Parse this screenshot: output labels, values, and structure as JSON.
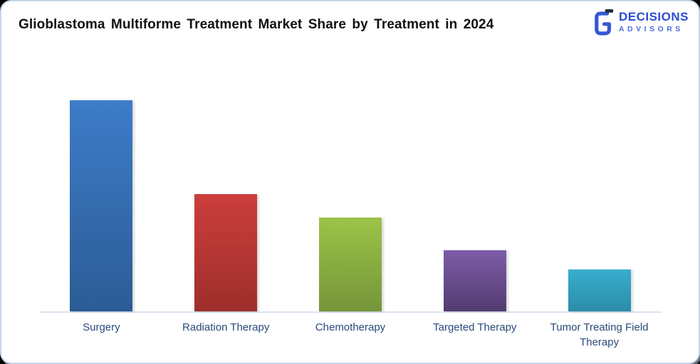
{
  "header": {
    "title": "Glioblastoma Multiforme Treatment Market Share by Treatment in 2024",
    "logo": {
      "name": "DECISIONS",
      "subname": "ADVISORS",
      "brand_blue": "#2b4bd4",
      "dark_accent": "#232f3e"
    }
  },
  "chart_data": {
    "type": "bar",
    "title": "Glioblastoma Multiforme Treatment Market Share by Treatment in 2024",
    "categories": [
      "Surgery",
      "Radiation Therapy",
      "Chemotherapy",
      "Targeted Therapy",
      "Tumor Treating Field Therapy"
    ],
    "values": [
      45,
      25,
      20,
      13,
      9
    ],
    "xlabel": "",
    "ylabel": "",
    "ylim": [
      0,
      50
    ],
    "grid": false,
    "legend": false,
    "y_axis_visible": false,
    "data_labels_visible": false,
    "axis_line_color": "#d9e4f2",
    "category_label_color": "#2a4a7a",
    "bar_gradients": [
      {
        "top": "#3e7cc9",
        "bottom": "#2b5c95"
      },
      {
        "top": "#cc3e3c",
        "bottom": "#9e2e2b"
      },
      {
        "top": "#9cc347",
        "bottom": "#75953a"
      },
      {
        "top": "#7d5ca8",
        "bottom": "#533c70"
      },
      {
        "top": "#38aece",
        "bottom": "#2c8ca8"
      }
    ]
  }
}
